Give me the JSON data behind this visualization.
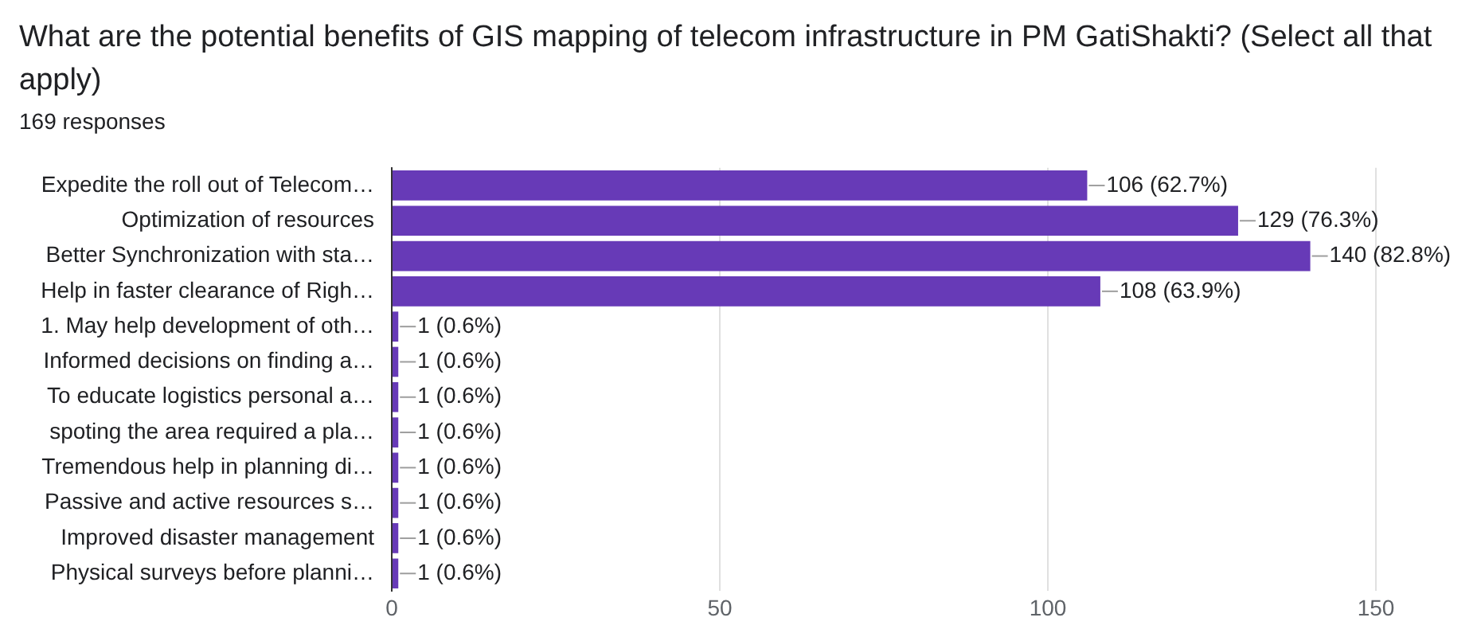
{
  "chart_data": {
    "type": "bar",
    "orientation": "horizontal",
    "title": "What are the potential benefits of GIS mapping of telecom infrastructure in PM GatiShakti? (Select all that apply)",
    "subtitle": "169 responses",
    "categories": [
      "Expedite the roll out of Telecom…",
      "Optimization of resources",
      "Better Synchronization with sta…",
      "Help in faster clearance of Righ…",
      "1. May help development of oth…",
      "Informed decisions on finding a…",
      "To educate logistics personal a…",
      "spoting the area required a pla…",
      "Tremendous help in planning di…",
      "Passive and active resources s…",
      "Improved disaster management",
      "Physical surveys before planni…"
    ],
    "values": [
      106,
      129,
      140,
      108,
      1,
      1,
      1,
      1,
      1,
      1,
      1,
      1
    ],
    "value_labels": [
      "106 (62.7%)",
      "129 (76.3%)",
      "140 (82.8%)",
      "108 (63.9%)",
      "1 (0.6%)",
      "1 (0.6%)",
      "1 (0.6%)",
      "1 (0.6%)",
      "1 (0.6%)",
      "1 (0.6%)",
      "1 (0.6%)",
      "1 (0.6%)"
    ],
    "color": "#673ab7",
    "xlim": [
      0,
      150
    ],
    "xticks": [
      0,
      50,
      100,
      150
    ],
    "grid": "x",
    "legend": false
  }
}
